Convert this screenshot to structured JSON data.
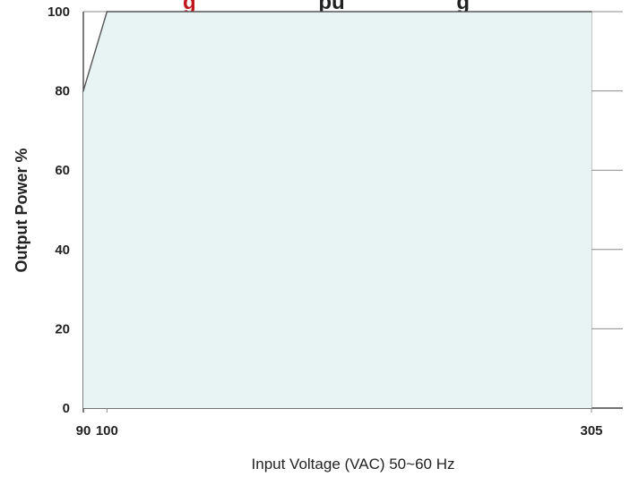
{
  "chart_data": {
    "type": "area",
    "title_prefix": "g",
    "title_rest": "pu",
    "title_suffix": "g",
    "xlabel": "Input Voltage (VAC) 50~60 Hz",
    "ylabel": "Output Power %",
    "x_ticks": [
      90,
      100,
      305
    ],
    "y_ticks": [
      0,
      20,
      40,
      60,
      80,
      100
    ],
    "xlim": [
      90,
      305
    ],
    "ylim": [
      0,
      100
    ],
    "grid": true,
    "series": [
      {
        "x": [
          90,
          100,
          305
        ],
        "y": [
          80,
          100,
          100
        ]
      }
    ],
    "colors": {
      "fill": "#e8f3f4",
      "line": "#555555",
      "grid": "#8c8c8c",
      "axis": "#444444",
      "title_accent": "#c0161d",
      "title_text": "#222222"
    }
  }
}
